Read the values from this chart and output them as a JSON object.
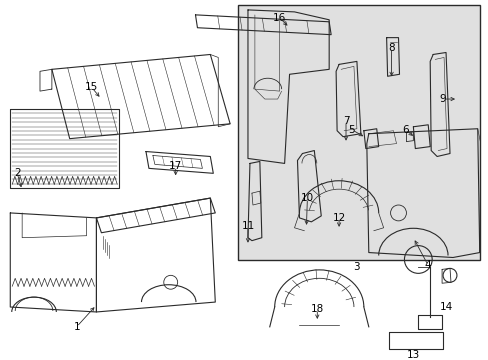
{
  "background_color": "#ffffff",
  "shaded_box_color": "#e0e0e0",
  "line_color": "#2a2a2a",
  "text_color": "#000000",
  "fig_width": 4.89,
  "fig_height": 3.6,
  "dpi": 100
}
